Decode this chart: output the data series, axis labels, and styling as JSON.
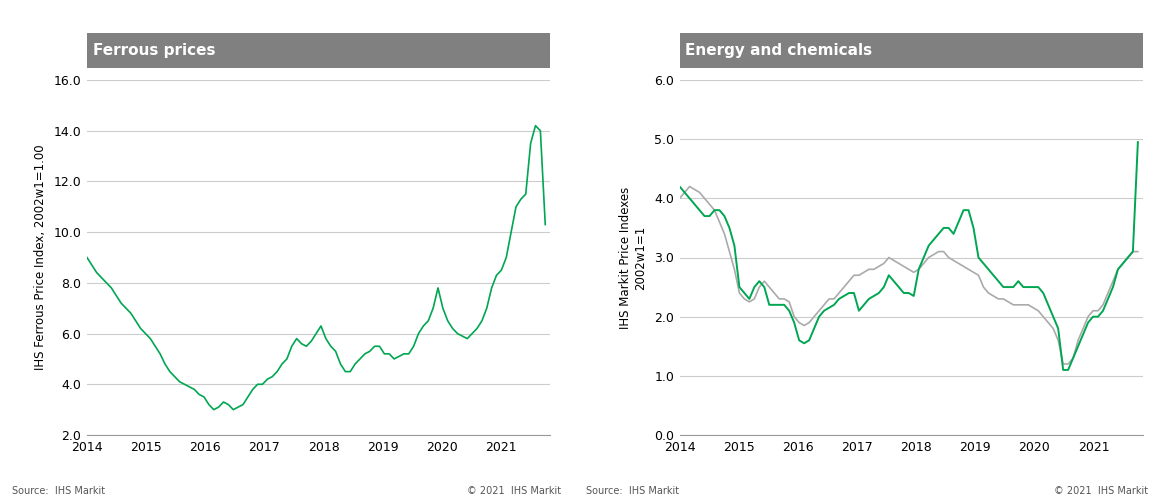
{
  "left_title": "Ferrous prices",
  "right_title": "Energy and chemicals",
  "left_ylabel": "IHS Ferrous Price Index, 2002w1=1.00",
  "right_ylabel": "IHS Markit Price Indexes\n2002w1=1",
  "left_ylim": [
    2.0,
    16.0
  ],
  "right_ylim": [
    0.0,
    6.0
  ],
  "left_yticks": [
    2.0,
    4.0,
    6.0,
    8.0,
    10.0,
    12.0,
    14.0,
    16.0
  ],
  "right_yticks": [
    0.0,
    1.0,
    2.0,
    3.0,
    4.0,
    5.0,
    6.0
  ],
  "xlim": [
    2014.0,
    2021.83
  ],
  "xticks": [
    2014,
    2015,
    2016,
    2017,
    2018,
    2019,
    2020,
    2021
  ],
  "source_text": "Source:  IHS Markit",
  "copyright_text": "© 2021  IHS Markit",
  "energy_label": "Energy",
  "chemicals_label": "Chemicals",
  "ferrous_color": "#00A651",
  "energy_color": "#00A651",
  "chemicals_color": "#AAAAAA",
  "header_bg": "#808080",
  "header_text_color": "#FFFFFF",
  "bg_color": "#FFFFFF",
  "plot_bg_color": "#FFFFFF",
  "grid_color": "#CCCCCC",
  "ferrous_y": [
    9.0,
    8.7,
    8.4,
    8.2,
    8.0,
    7.8,
    7.5,
    7.2,
    7.0,
    6.8,
    6.5,
    6.2,
    6.0,
    5.8,
    5.5,
    5.2,
    4.8,
    4.5,
    4.3,
    4.1,
    4.0,
    3.9,
    3.8,
    3.6,
    3.5,
    3.2,
    3.0,
    3.1,
    3.3,
    3.2,
    3.0,
    3.1,
    3.2,
    3.5,
    3.8,
    4.0,
    4.0,
    4.2,
    4.3,
    4.5,
    4.8,
    5.0,
    5.5,
    5.8,
    5.6,
    5.5,
    5.7,
    6.0,
    6.3,
    5.8,
    5.5,
    5.3,
    4.8,
    4.5,
    4.5,
    4.8,
    5.0,
    5.2,
    5.3,
    5.5,
    5.5,
    5.2,
    5.2,
    5.0,
    5.1,
    5.2,
    5.2,
    5.5,
    6.0,
    6.3,
    6.5,
    7.0,
    7.8,
    7.0,
    6.5,
    6.2,
    6.0,
    5.9,
    5.8,
    6.0,
    6.2,
    6.5,
    7.0,
    7.8,
    8.3,
    8.5,
    9.0,
    10.0,
    11.0,
    11.3,
    11.5,
    13.5,
    14.2,
    14.0,
    10.3
  ],
  "energy_y": [
    4.2,
    4.1,
    4.0,
    3.9,
    3.8,
    3.7,
    3.7,
    3.8,
    3.8,
    3.7,
    3.5,
    3.2,
    2.5,
    2.4,
    2.3,
    2.5,
    2.6,
    2.5,
    2.2,
    2.2,
    2.2,
    2.2,
    2.1,
    1.9,
    1.6,
    1.55,
    1.6,
    1.8,
    2.0,
    2.1,
    2.15,
    2.2,
    2.3,
    2.35,
    2.4,
    2.4,
    2.1,
    2.2,
    2.3,
    2.35,
    2.4,
    2.5,
    2.7,
    2.6,
    2.5,
    2.4,
    2.4,
    2.35,
    2.8,
    3.0,
    3.2,
    3.3,
    3.4,
    3.5,
    3.5,
    3.4,
    3.6,
    3.8,
    3.8,
    3.5,
    3.0,
    2.9,
    2.8,
    2.7,
    2.6,
    2.5,
    2.5,
    2.5,
    2.6,
    2.5,
    2.5,
    2.5,
    2.5,
    2.4,
    2.2,
    2.0,
    1.8,
    1.1,
    1.1,
    1.3,
    1.5,
    1.7,
    1.9,
    2.0,
    2.0,
    2.1,
    2.3,
    2.5,
    2.8,
    2.9,
    3.0,
    3.1,
    4.95
  ],
  "chemicals_y": [
    4.0,
    4.1,
    4.2,
    4.15,
    4.1,
    4.0,
    3.9,
    3.8,
    3.6,
    3.4,
    3.1,
    2.8,
    2.4,
    2.3,
    2.25,
    2.3,
    2.5,
    2.6,
    2.5,
    2.4,
    2.3,
    2.3,
    2.25,
    2.0,
    1.9,
    1.85,
    1.9,
    2.0,
    2.1,
    2.2,
    2.3,
    2.3,
    2.4,
    2.5,
    2.6,
    2.7,
    2.7,
    2.75,
    2.8,
    2.8,
    2.85,
    2.9,
    3.0,
    2.95,
    2.9,
    2.85,
    2.8,
    2.75,
    2.8,
    2.9,
    3.0,
    3.05,
    3.1,
    3.1,
    3.0,
    2.95,
    2.9,
    2.85,
    2.8,
    2.75,
    2.7,
    2.5,
    2.4,
    2.35,
    2.3,
    2.3,
    2.25,
    2.2,
    2.2,
    2.2,
    2.2,
    2.15,
    2.1,
    2.0,
    1.9,
    1.8,
    1.6,
    1.2,
    1.2,
    1.3,
    1.6,
    1.8,
    2.0,
    2.1,
    2.1,
    2.2,
    2.4,
    2.6,
    2.8,
    2.9,
    3.0,
    3.1,
    3.1
  ]
}
